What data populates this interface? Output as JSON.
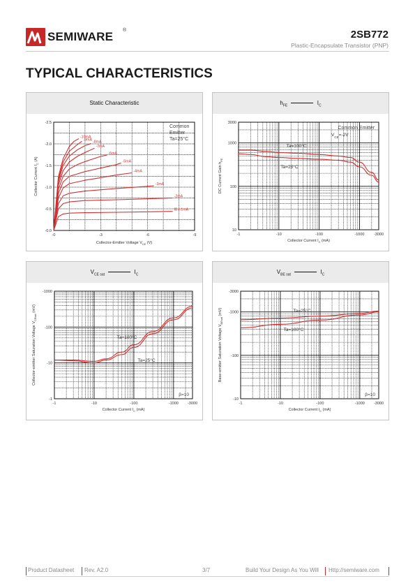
{
  "header": {
    "brand": "SEMIWARE",
    "reg_mark": "®",
    "part_number": "2SB772",
    "subtitle": "Plastic-Encapsulate Transistor (PNP)"
  },
  "page_title": "TYPICAL CHARACTERISTICS",
  "colors": {
    "accent": "#c62828",
    "curve": "#d32f2f",
    "grid": "#111111",
    "panel_head": "#ebebeb"
  },
  "footer": {
    "left": "Product Datasheet",
    "rev": "Rev. A2.0",
    "page": "3/7",
    "slogan": "Build Your Design As You Will",
    "url": "Http://semiware.com"
  },
  "charts": {
    "c1": {
      "title": "Static Characteristic",
      "ylabel": "Collector Current I",
      "ylabel_sub": "C",
      "ylabel_unit": " (A)",
      "xlabel": "Collector-Emitter Voltage V",
      "xlabel_sub": "CE",
      "xlabel_unit": " (V)",
      "xticks": [
        "-0",
        "-3",
        "-6",
        "-9"
      ],
      "yticks": [
        "-0.0",
        "-0.5",
        "-1.0",
        "-1.5",
        "-2.0",
        "-2.5"
      ],
      "note": [
        "Common",
        "Emitter",
        "Ta=25°C"
      ]
    },
    "c2": {
      "title_main": "h",
      "title_sub": "FE",
      "title_vs": "I",
      "title_vs_sub": "C",
      "ylabel": "DC Current Gain h",
      "ylabel_sub": "FE",
      "xlabel": "Collector Current I",
      "xlabel_sub": "C",
      "xlabel_unit": " (mA)",
      "xticks": [
        "-1",
        "-10",
        "-100",
        "-1000",
        "-3000"
      ],
      "yticks": [
        "10",
        "100",
        "1000",
        "3000"
      ],
      "note": [
        "Common Emitter",
        "V",
        "CE",
        "=-2V"
      ],
      "curve_labels": [
        "Ta=100°C",
        "Ta=25°C"
      ]
    },
    "c3": {
      "title_main": "V",
      "title_sub": "CE sat",
      "title_vs": "I",
      "title_vs_sub": "C",
      "ylabel": "Collector-emitter Saturation Voltage V",
      "ylabel_sub": "CEsat",
      "ylabel_unit": " (mV)",
      "xlabel": "Collector Current I",
      "xlabel_sub": "C",
      "xlabel_unit": " (mA)",
      "xticks": [
        "-1",
        "-10",
        "-100",
        "-1000",
        "-3000"
      ],
      "yticks": [
        "-1",
        "-10",
        "-100",
        "-1000"
      ],
      "beta": "β=10",
      "curve_labels": [
        "Ta=100°C",
        "Ta=25°C"
      ]
    },
    "c4": {
      "title_main": "V",
      "title_sub": "BE sat",
      "title_vs": "I",
      "title_vs_sub": "C",
      "ylabel": "Base-emitter Saturation Voltage V",
      "ylabel_sub": "BEsat",
      "ylabel_unit": " (mV)",
      "xlabel": "Collector Current I",
      "xlabel_sub": "C",
      "xlabel_unit": " (mA)",
      "xticks": [
        "-1",
        "-10",
        "-100",
        "-1000",
        "-3000"
      ],
      "yticks": [
        "-10",
        "-100",
        "-1000",
        "-3000"
      ],
      "beta": "β=10",
      "curve_labels": [
        "Ta=25°C",
        "Ta=100°C"
      ]
    }
  },
  "chart_data": [
    {
      "type": "line",
      "title": "Static Characteristic",
      "xlabel": "Collector-Emitter Voltage VCE (V)",
      "ylabel": "Collector Current IC (A)",
      "xlim": [
        0,
        -9
      ],
      "ylim": [
        0,
        -2.5
      ],
      "series": [
        {
          "name": "IB=-1mA",
          "x": [
            0,
            -0.3,
            -0.6,
            -1,
            -2,
            -4,
            -6,
            -7.6
          ],
          "y": [
            0,
            -0.32,
            -0.38,
            -0.4,
            -0.41,
            -0.42,
            -0.43,
            -0.44
          ]
        },
        {
          "name": "-2mA",
          "x": [
            0,
            -0.3,
            -0.6,
            -1,
            -2,
            -4,
            -6,
            -7.6
          ],
          "y": [
            0,
            -0.5,
            -0.62,
            -0.66,
            -0.69,
            -0.71,
            -0.73,
            -0.75
          ]
        },
        {
          "name": "-3mA",
          "x": [
            0,
            -0.3,
            -0.6,
            -1,
            -2,
            -4,
            -6,
            -6.4
          ],
          "y": [
            0,
            -0.62,
            -0.8,
            -0.86,
            -0.91,
            -0.97,
            -1.02,
            -1.03
          ]
        },
        {
          "name": "-4mA",
          "x": [
            0,
            -0.3,
            -0.6,
            -1,
            -2,
            -3,
            -4,
            -5.0
          ],
          "y": [
            0,
            -0.75,
            -0.98,
            -1.08,
            -1.16,
            -1.22,
            -1.28,
            -1.33
          ]
        },
        {
          "name": "-5mA",
          "x": [
            0,
            -0.3,
            -0.6,
            -1,
            -2,
            -3,
            -4,
            -4.3
          ],
          "y": [
            0,
            -0.85,
            -1.12,
            -1.25,
            -1.36,
            -1.44,
            -1.52,
            -1.56
          ]
        },
        {
          "name": "-6mA",
          "x": [
            0,
            -0.3,
            -0.6,
            -1,
            -1.5,
            -2,
            -3,
            -3.4
          ],
          "y": [
            0,
            -0.95,
            -1.25,
            -1.42,
            -1.52,
            -1.59,
            -1.71,
            -1.74
          ]
        },
        {
          "name": "-7mA",
          "x": [
            0,
            -0.3,
            -0.6,
            -1,
            -1.5,
            -2,
            -2.6
          ],
          "y": [
            0,
            -1.05,
            -1.38,
            -1.58,
            -1.71,
            -1.8,
            -1.9
          ]
        },
        {
          "name": "-8mA",
          "x": [
            0,
            -0.3,
            -0.6,
            -1,
            -1.5,
            -2,
            -2.4
          ],
          "y": [
            0,
            -1.12,
            -1.5,
            -1.72,
            -1.86,
            -1.96,
            -2.01
          ]
        },
        {
          "name": "-9mA",
          "x": [
            0,
            -0.3,
            -0.6,
            -1,
            -1.5,
            -1.8
          ],
          "y": [
            0,
            -1.18,
            -1.58,
            -1.83,
            -1.98,
            -2.06
          ]
        },
        {
          "name": "-10mA",
          "x": [
            0,
            -0.3,
            -0.6,
            -1,
            -1.3,
            -1.6
          ],
          "y": [
            0,
            -1.24,
            -1.66,
            -1.94,
            -2.06,
            -2.12
          ]
        }
      ]
    },
    {
      "type": "line",
      "title": "hFE — IC",
      "xlabel": "Collector Current IC (mA)",
      "ylabel": "DC Current Gain hFE",
      "xscale": "log",
      "yscale": "log",
      "xlim": [
        -1,
        -3000
      ],
      "ylim": [
        10,
        3000
      ],
      "series": [
        {
          "name": "Ta=100°C",
          "x": [
            -1,
            -2,
            -5,
            -10,
            -30,
            -100,
            -300,
            -600,
            -1000,
            -2000,
            -3000
          ],
          "y": [
            680,
            680,
            640,
            600,
            580,
            540,
            500,
            460,
            360,
            210,
            140
          ]
        },
        {
          "name": "Ta=25°C",
          "x": [
            -1,
            -2,
            -5,
            -10,
            -30,
            -100,
            -300,
            -600,
            -1000,
            -2000,
            -3000
          ],
          "y": [
            560,
            540,
            480,
            460,
            440,
            420,
            400,
            360,
            280,
            180,
            125
          ]
        }
      ]
    },
    {
      "type": "line",
      "title": "VCE sat — IC",
      "xlabel": "Collector Current IC (mA)",
      "ylabel": "Collector-emitter Saturation Voltage VCEsat (mV)",
      "xscale": "log",
      "yscale": "log",
      "xlim": [
        -1,
        -3000
      ],
      "ylim": [
        -1,
        -1000
      ],
      "beta": 10,
      "series": [
        {
          "name": "Ta=100°C",
          "x": [
            -1,
            -3,
            -10,
            -20,
            -50,
            -100,
            -300,
            -1000,
            -3000
          ],
          "y": [
            -12,
            -12,
            -11,
            -13,
            -20,
            -32,
            -75,
            -180,
            -380
          ]
        },
        {
          "name": "Ta=25°C",
          "x": [
            -1,
            -3,
            -10,
            -20,
            -50,
            -100,
            -300,
            -1000,
            -3000
          ],
          "y": [
            -12,
            -11.5,
            -10,
            -12,
            -17,
            -27,
            -65,
            -160,
            -340
          ]
        }
      ]
    },
    {
      "type": "line",
      "title": "VBE sat — IC",
      "xlabel": "Collector Current IC (mA)",
      "ylabel": "Base-emitter Saturation Voltage VBEsat (mV)",
      "xscale": "log",
      "yscale": "log",
      "xlim": [
        -1,
        -3000
      ],
      "ylim": [
        -10,
        -3000
      ],
      "beta": 10,
      "series": [
        {
          "name": "Ta=25°C",
          "x": [
            -1,
            -10,
            -100,
            -1000,
            -3000
          ],
          "y": [
            -660,
            -720,
            -800,
            -920,
            -1050
          ]
        },
        {
          "name": "Ta=100°C",
          "x": [
            -1,
            -10,
            -100,
            -1000,
            -3000
          ],
          "y": [
            -430,
            -520,
            -650,
            -850,
            -1000
          ]
        }
      ]
    }
  ]
}
